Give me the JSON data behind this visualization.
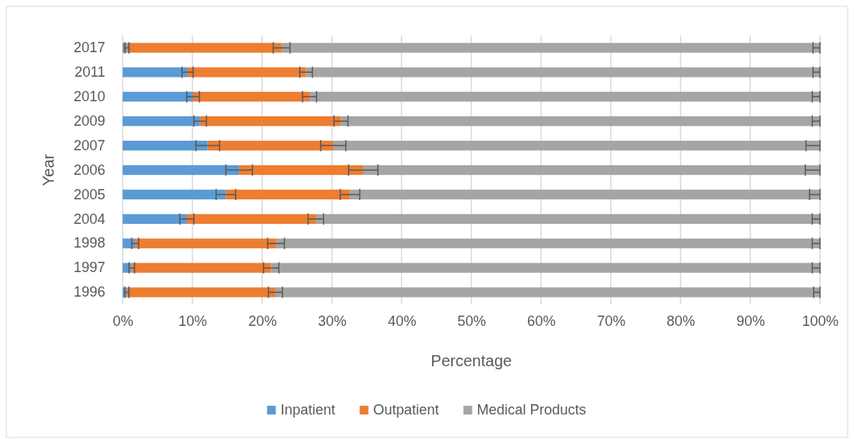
{
  "chart_data": {
    "type": "bar",
    "orientation": "horizontal",
    "stacked": true,
    "categories": [
      "2017",
      "2011",
      "2010",
      "2009",
      "2007",
      "2006",
      "2005",
      "2004",
      "1998",
      "1997",
      "1996"
    ],
    "series": [
      {
        "name": "Inpatient",
        "color": "#5b9bd5",
        "values": [
          0.6,
          9.3,
          10.1,
          11.1,
          12.2,
          16.7,
          14.8,
          9.2,
          1.8,
          1.3,
          0.6
        ],
        "errors": [
          0.3,
          0.8,
          0.9,
          0.9,
          1.7,
          1.9,
          1.4,
          1.0,
          0.5,
          0.4,
          0.3
        ]
      },
      {
        "name": "Outpatient",
        "color": "#ed7d31",
        "values": [
          22.2,
          17.0,
          16.7,
          20.2,
          18.0,
          17.8,
          17.8,
          18.5,
          20.2,
          20.0,
          21.3
        ],
        "errors": [
          1.2,
          0.9,
          1.0,
          1.0,
          1.8,
          2.1,
          1.4,
          1.1,
          1.2,
          1.1,
          1.0
        ]
      },
      {
        "name": "Medical Products",
        "color": "#a5a5a5",
        "values": [
          77.2,
          73.7,
          73.2,
          68.7,
          69.8,
          65.5,
          67.4,
          72.3,
          78.0,
          78.7,
          78.1
        ],
        "errors": [
          [
            99.0,
            100
          ],
          [
            99.0,
            100
          ],
          [
            98.9,
            100
          ],
          [
            98.9,
            100
          ],
          [
            98.0,
            100
          ],
          [
            97.9,
            100
          ],
          [
            98.5,
            100
          ],
          [
            98.9,
            100
          ],
          [
            98.9,
            100
          ],
          [
            98.9,
            100
          ],
          [
            99.1,
            100
          ]
        ]
      }
    ],
    "xlim": [
      0,
      100
    ],
    "xticks": [
      {
        "value": 0,
        "label": "0%"
      },
      {
        "value": 10,
        "label": "10%"
      },
      {
        "value": 20,
        "label": "20%"
      },
      {
        "value": 30,
        "label": "30%"
      },
      {
        "value": 40,
        "label": "40%"
      },
      {
        "value": 50,
        "label": "50%"
      },
      {
        "value": 60,
        "label": "60%"
      },
      {
        "value": 70,
        "label": "70%"
      },
      {
        "value": 80,
        "label": "80%"
      },
      {
        "value": 90,
        "label": "90%"
      },
      {
        "value": 100,
        "label": "100%"
      }
    ],
    "xlabel": "Percentage",
    "ylabel": "Year",
    "grid": "x",
    "legend": "bottom"
  }
}
